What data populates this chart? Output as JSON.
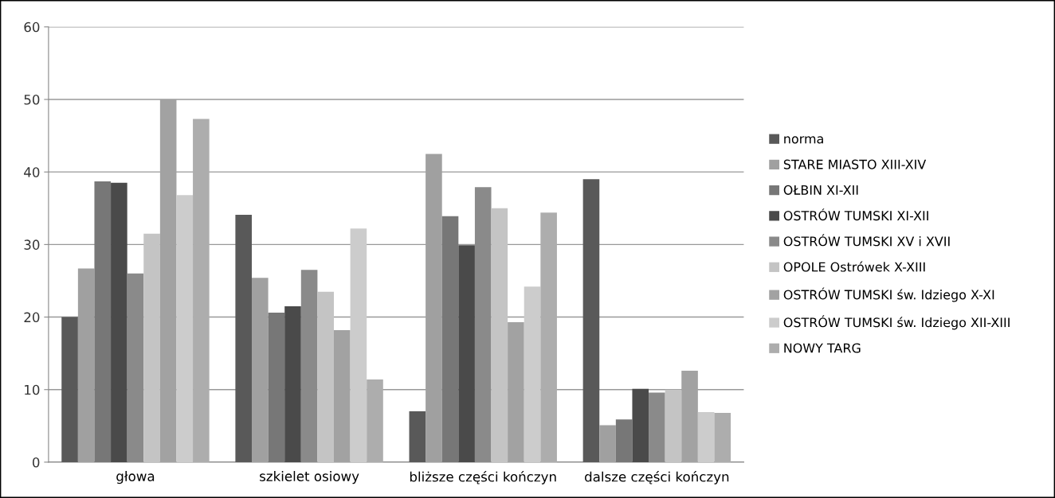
{
  "chart_data": {
    "type": "bar",
    "categories": [
      "głowa",
      "szkielet osiowy",
      "bliższe części kończyn",
      "dalsze części kończyn"
    ],
    "series": [
      {
        "name": "norma",
        "color": "#595959",
        "values": [
          20,
          34.1,
          7,
          39
        ]
      },
      {
        "name": "STARE MIASTO XIII-XIV",
        "color": "#a0a0a0",
        "values": [
          26.7,
          25.4,
          42.5,
          5.1
        ]
      },
      {
        "name": "OŁBIN XI-XII",
        "color": "#777777",
        "values": [
          38.7,
          20.6,
          33.9,
          5.9
        ]
      },
      {
        "name": "OSTRÓW TUMSKI XI-XII",
        "color": "#4a4a4a",
        "values": [
          38.5,
          21.5,
          29.9,
          10.1
        ]
      },
      {
        "name": "OSTRÓW TUMSKI XV i XVII",
        "color": "#8a8a8a",
        "values": [
          26,
          26.5,
          37.9,
          9.6
        ]
      },
      {
        "name": "OPOLE Ostrówek X-XIII",
        "color": "#c4c4c4",
        "values": [
          31.5,
          23.5,
          35,
          10
        ]
      },
      {
        "name": "OSTRÓW TUMSKI św. Idziego X-XI",
        "color": "#a2a2a2",
        "values": [
          50,
          18.2,
          19.3,
          12.6
        ]
      },
      {
        "name": "OSTRÓW TUMSKI św. Idziego XII-XIII",
        "color": "#cccccc",
        "values": [
          36.8,
          32.2,
          24.2,
          6.9
        ]
      },
      {
        "name": "NOWY TARG",
        "color": "#adadad",
        "values": [
          47.3,
          11.4,
          34.4,
          6.8
        ]
      }
    ],
    "ylim": [
      0,
      60
    ],
    "yticks": [
      0,
      10,
      20,
      30,
      40,
      50,
      60
    ],
    "grid": "y",
    "legend": "right"
  }
}
